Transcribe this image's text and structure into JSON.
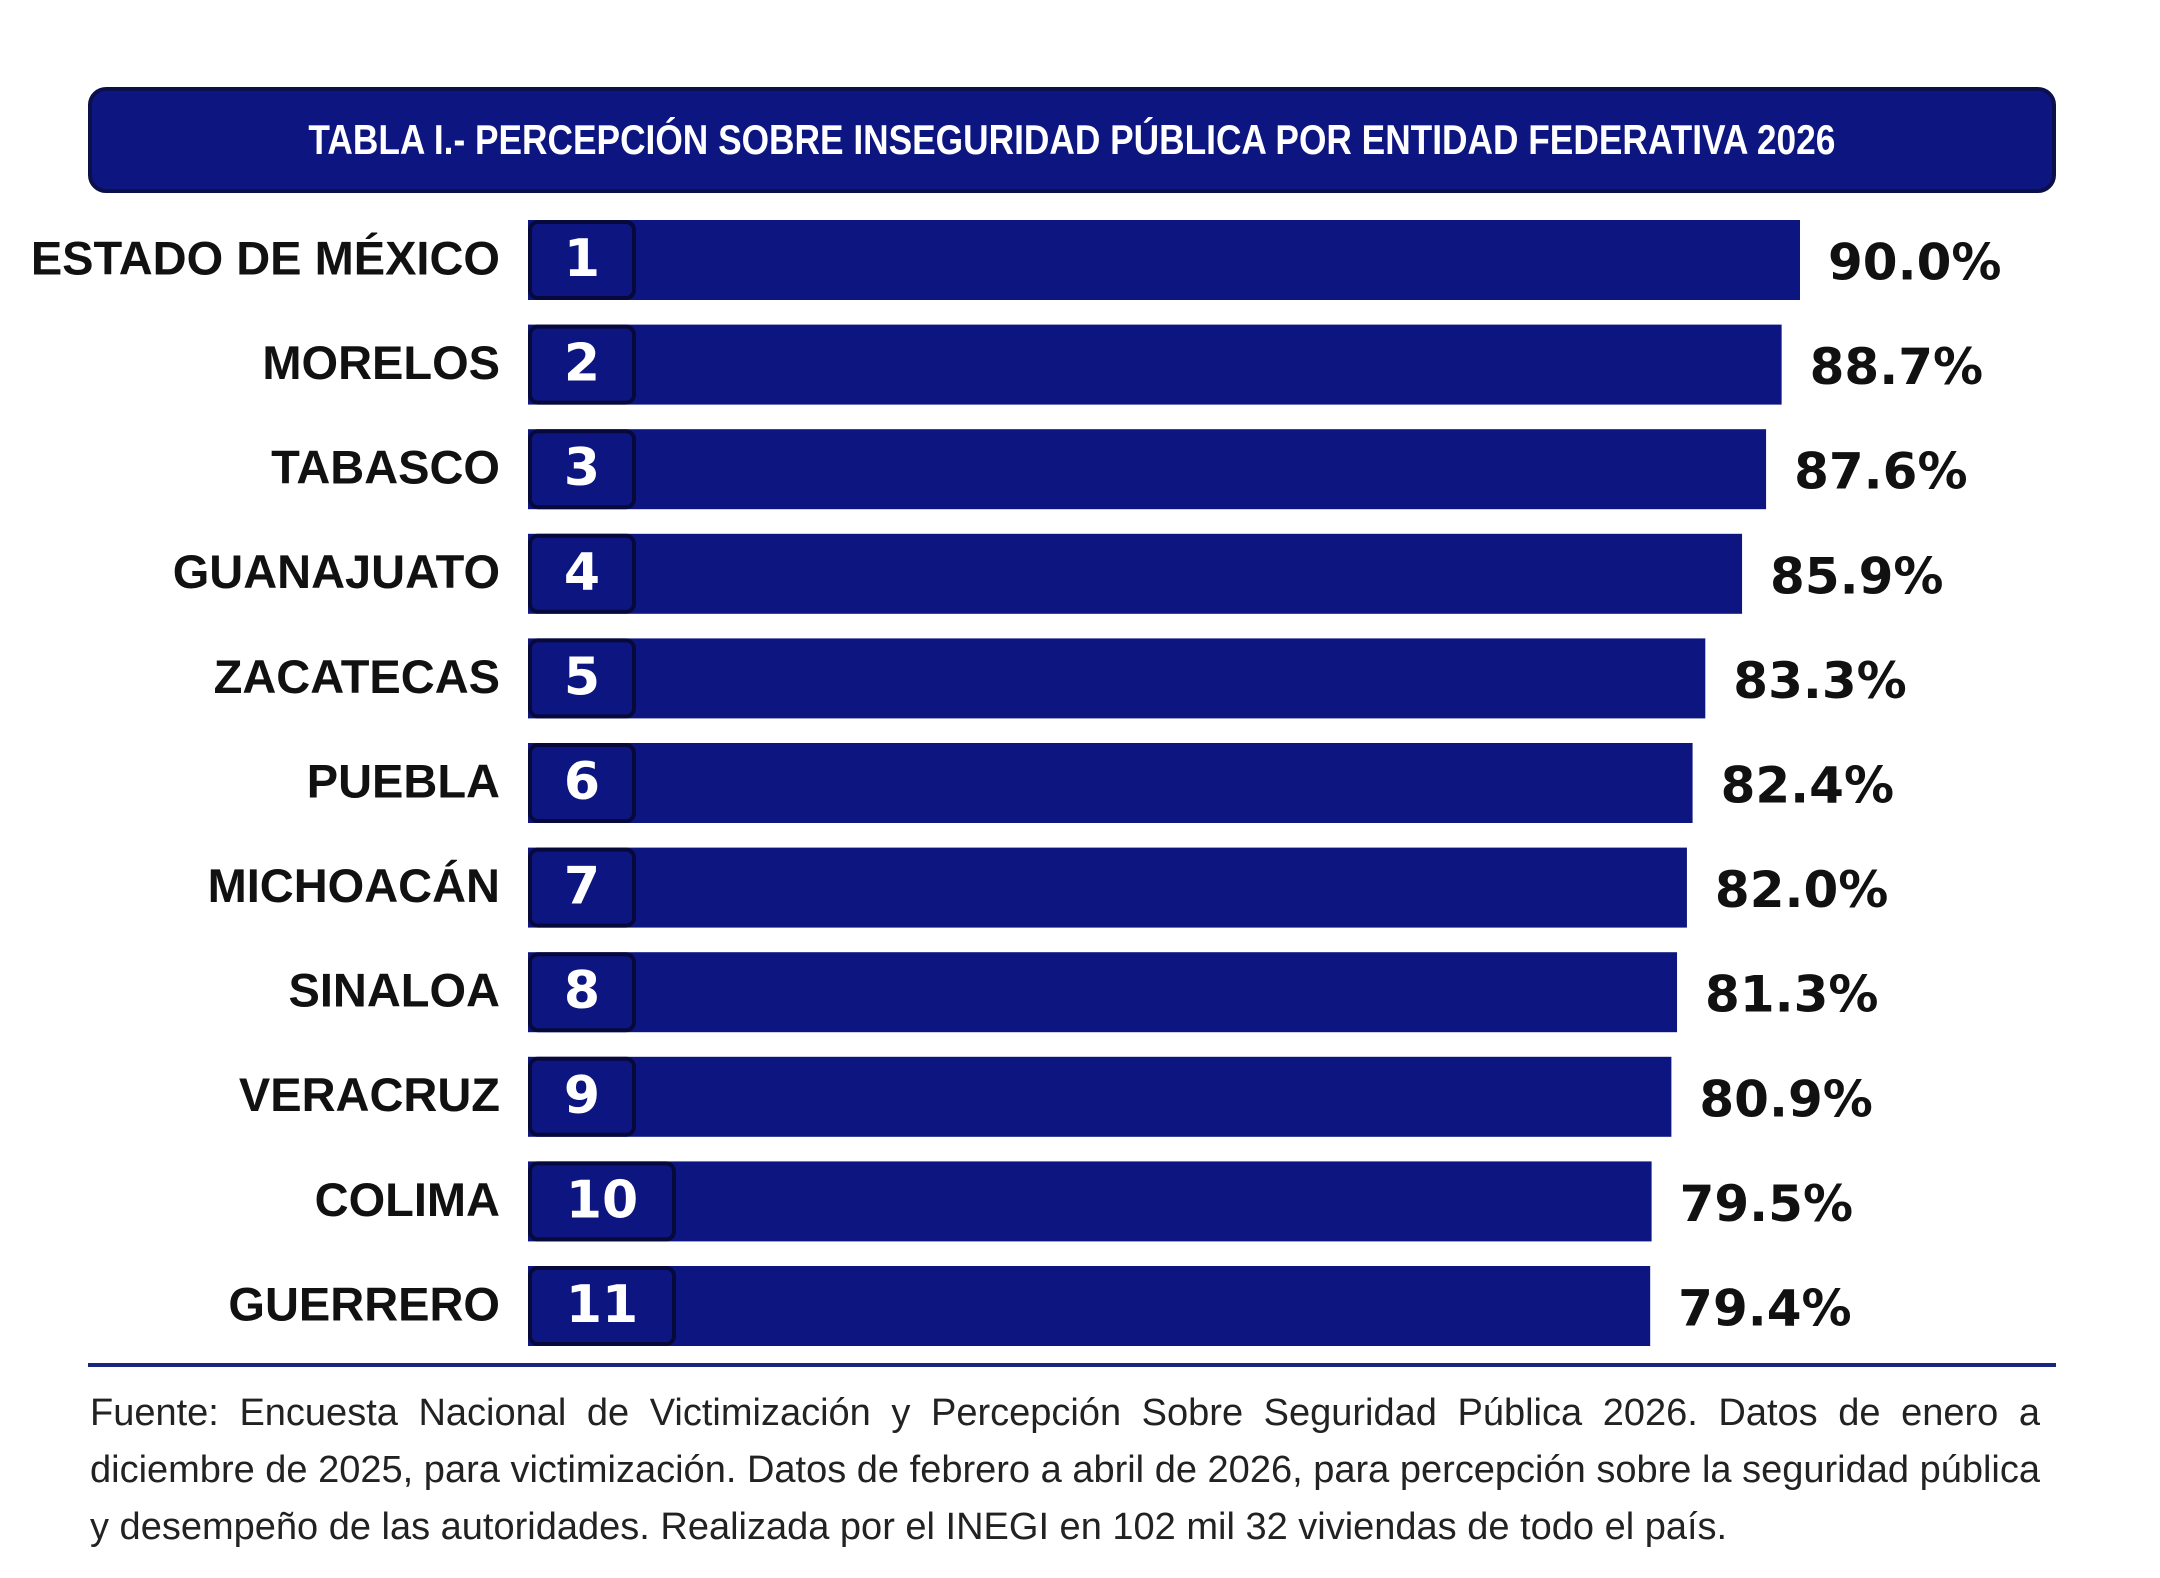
{
  "chart_data": {
    "type": "bar",
    "orientation": "horizontal",
    "title": "TABLA I.- PERCEPCIÓN SOBRE INSEGURIDAD PÚBLICA POR ENTIDAD FEDERATIVA 2026",
    "categories": [
      "ESTADO DE MÉXICO",
      "MORELOS",
      "TABASCO",
      "GUANAJUATO",
      "ZACATECAS",
      "PUEBLA",
      "MICHOACÁN",
      "SINALOA",
      "VERACRUZ",
      "COLIMA",
      "GUERRERO"
    ],
    "ranks": [
      "1",
      "2",
      "3",
      "4",
      "5",
      "6",
      "7",
      "8",
      "9",
      "10",
      "11"
    ],
    "values": [
      90.0,
      88.7,
      87.6,
      85.9,
      83.3,
      82.4,
      82.0,
      81.3,
      80.9,
      79.5,
      79.4
    ],
    "value_labels": [
      "90.0%",
      "88.7%",
      "87.6%",
      "85.9%",
      "83.3%",
      "82.4%",
      "82.0%",
      "81.3%",
      "80.9%",
      "79.5%",
      "79.4%"
    ],
    "xlabel": "",
    "ylabel": "",
    "grid": false,
    "legend": "none",
    "bar_color": "#0d1680"
  },
  "source": "Fuente: Encuesta Nacional de Victimización y Percepción Sobre Seguridad Pública 2026. Datos de enero a diciembre de 2025, para victimización. Datos de febrero a abril de 2026, para percepción sobre la seguridad pública y desempeño de las autoridades. Realizada por el INEGI en 102 mil 32 viviendas de todo el país."
}
